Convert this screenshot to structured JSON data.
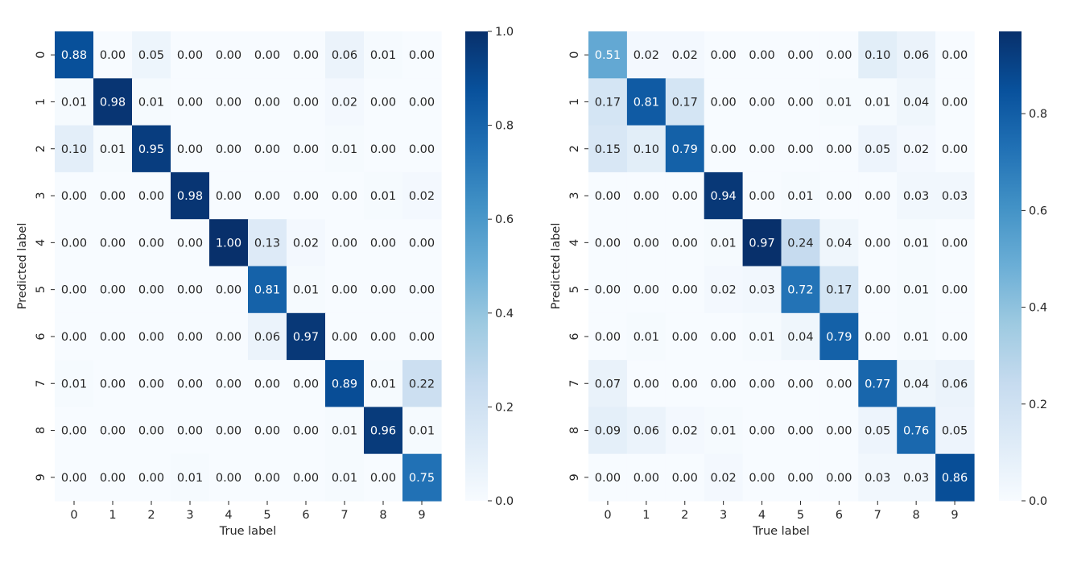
{
  "chart_data": [
    {
      "type": "heatmap",
      "xlabel": "True label",
      "ylabel": "Predicted label",
      "x_categories": [
        "0",
        "1",
        "2",
        "3",
        "4",
        "5",
        "6",
        "7",
        "8",
        "9"
      ],
      "y_categories": [
        "0",
        "1",
        "2",
        "3",
        "4",
        "5",
        "6",
        "7",
        "8",
        "9"
      ],
      "values": [
        [
          0.88,
          0.0,
          0.05,
          0.0,
          0.0,
          0.0,
          0.0,
          0.06,
          0.01,
          0.0
        ],
        [
          0.01,
          0.98,
          0.01,
          0.0,
          0.0,
          0.0,
          0.0,
          0.02,
          0.0,
          0.0
        ],
        [
          0.1,
          0.01,
          0.95,
          0.0,
          0.0,
          0.0,
          0.0,
          0.01,
          0.0,
          0.0
        ],
        [
          0.0,
          0.0,
          0.0,
          0.98,
          0.0,
          0.0,
          0.0,
          0.0,
          0.01,
          0.02
        ],
        [
          0.0,
          0.0,
          0.0,
          0.0,
          1.0,
          0.13,
          0.02,
          0.0,
          0.0,
          0.0
        ],
        [
          0.0,
          0.0,
          0.0,
          0.0,
          0.0,
          0.81,
          0.01,
          0.0,
          0.0,
          0.0
        ],
        [
          0.0,
          0.0,
          0.0,
          0.0,
          0.0,
          0.06,
          0.97,
          0.0,
          0.0,
          0.0
        ],
        [
          0.01,
          0.0,
          0.0,
          0.0,
          0.0,
          0.0,
          0.0,
          0.89,
          0.01,
          0.22
        ],
        [
          0.0,
          0.0,
          0.0,
          0.0,
          0.0,
          0.0,
          0.0,
          0.01,
          0.96,
          0.01
        ],
        [
          0.0,
          0.0,
          0.0,
          0.01,
          0.0,
          0.0,
          0.0,
          0.01,
          0.0,
          0.75
        ]
      ],
      "colormap": "Blues",
      "colorbar": {
        "vmin": 0.0,
        "vmax": 1.0,
        "ticks": [
          0.0,
          0.2,
          0.4,
          0.6,
          0.8,
          1.0
        ],
        "tick_labels": [
          "0.0",
          "0.2",
          "0.4",
          "0.6",
          "0.8",
          "1.0"
        ]
      }
    },
    {
      "type": "heatmap",
      "xlabel": "True label",
      "ylabel": "Predicted label",
      "x_categories": [
        "0",
        "1",
        "2",
        "3",
        "4",
        "5",
        "6",
        "7",
        "8",
        "9"
      ],
      "y_categories": [
        "0",
        "1",
        "2",
        "3",
        "4",
        "5",
        "6",
        "7",
        "8",
        "9"
      ],
      "values": [
        [
          0.51,
          0.02,
          0.02,
          0.0,
          0.0,
          0.0,
          0.0,
          0.1,
          0.06,
          0.0
        ],
        [
          0.17,
          0.81,
          0.17,
          0.0,
          0.0,
          0.0,
          0.01,
          0.01,
          0.04,
          0.0
        ],
        [
          0.15,
          0.1,
          0.79,
          0.0,
          0.0,
          0.0,
          0.0,
          0.05,
          0.02,
          0.0
        ],
        [
          0.0,
          0.0,
          0.0,
          0.94,
          0.0,
          0.01,
          0.0,
          0.0,
          0.03,
          0.03
        ],
        [
          0.0,
          0.0,
          0.0,
          0.01,
          0.97,
          0.24,
          0.04,
          0.0,
          0.01,
          0.0
        ],
        [
          0.0,
          0.0,
          0.0,
          0.02,
          0.03,
          0.72,
          0.17,
          0.0,
          0.01,
          0.0
        ],
        [
          0.0,
          0.01,
          0.0,
          0.0,
          0.01,
          0.04,
          0.79,
          0.0,
          0.01,
          0.0
        ],
        [
          0.07,
          0.0,
          0.0,
          0.0,
          0.0,
          0.0,
          0.0,
          0.77,
          0.04,
          0.06
        ],
        [
          0.09,
          0.06,
          0.02,
          0.01,
          0.0,
          0.0,
          0.0,
          0.05,
          0.76,
          0.05
        ],
        [
          0.0,
          0.0,
          0.0,
          0.02,
          0.0,
          0.0,
          0.0,
          0.03,
          0.03,
          0.86
        ]
      ],
      "colormap": "Blues",
      "colorbar": {
        "vmin": 0.0,
        "vmax": 0.97,
        "ticks": [
          0.0,
          0.2,
          0.4,
          0.6,
          0.8
        ],
        "tick_labels": [
          "0.0",
          "0.2",
          "0.4",
          "0.6",
          "0.8"
        ]
      }
    }
  ],
  "colors": {
    "text_dark": "#262626",
    "text_light": "#ffffff",
    "axis_text": "#262626"
  }
}
